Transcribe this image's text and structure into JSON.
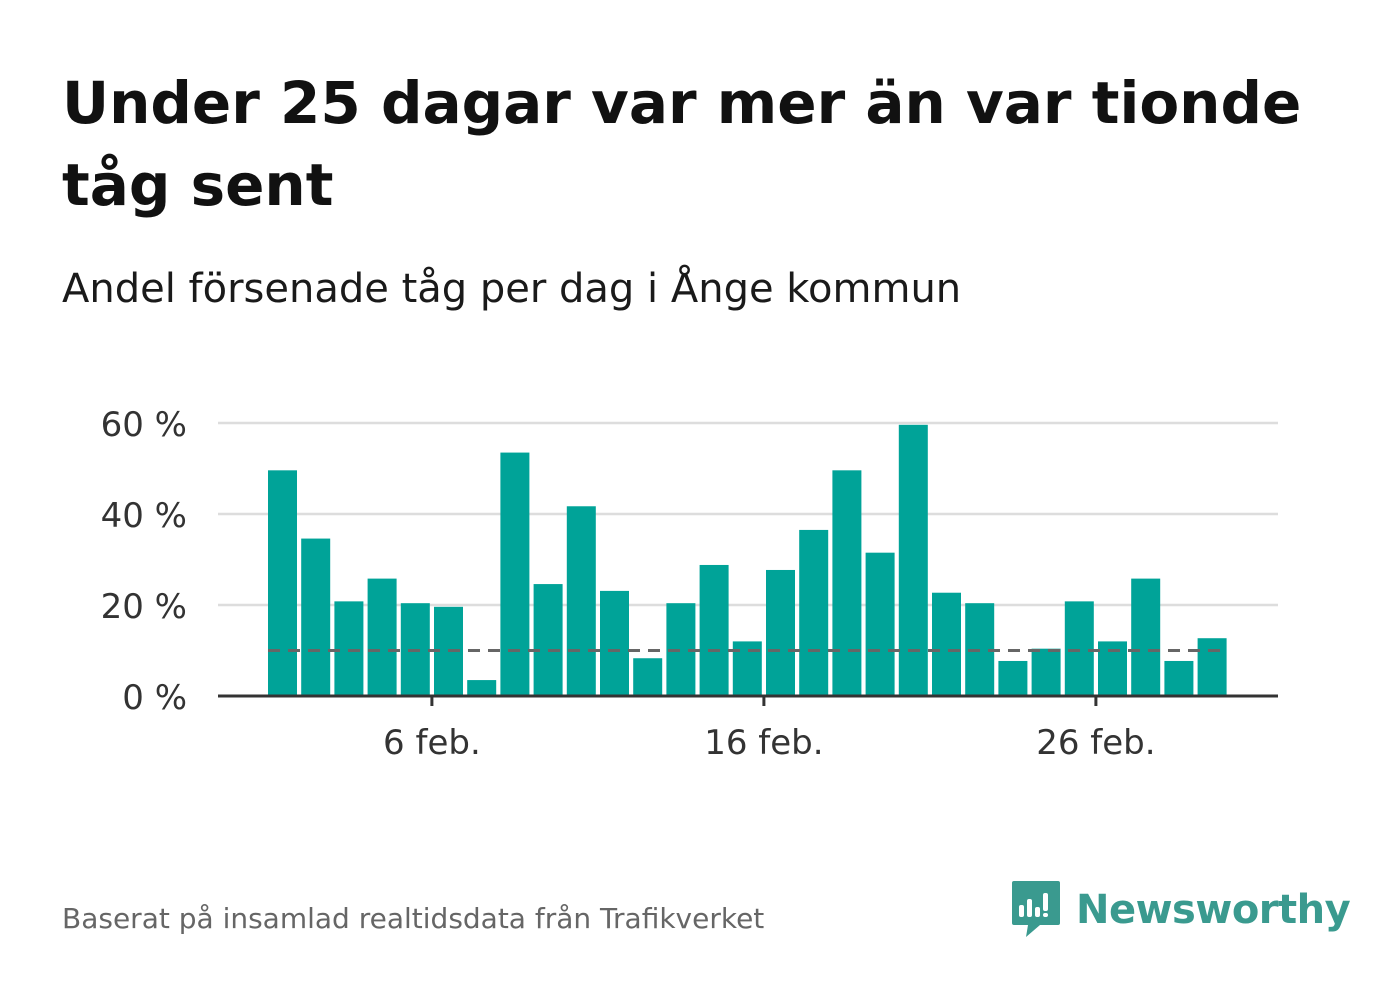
{
  "title": "Under 25 dagar var mer än var tionde tåg sent",
  "subtitle": "Andel försenade tåg per dag i Ånge kommun",
  "source": "Baserat på insamlad realtidsdata från Trafikverket",
  "brand": {
    "name": "Newsworthy",
    "icon": "newsworthy-logo-icon"
  },
  "colors": {
    "bar": "#00a398",
    "grid": "#dddddd",
    "axis": "#333333",
    "reference_line": "#666666",
    "brand": "#3a9a8f"
  },
  "chart_data": {
    "type": "bar",
    "title": "Under 25 dagar var mer än var tionde tåg sent",
    "subtitle": "Andel försenade tåg per dag i Ånge kommun",
    "xlabel": "",
    "ylabel": "",
    "ylim": [
      0,
      60
    ],
    "yticks": [
      0,
      20,
      40,
      60
    ],
    "ytick_labels": [
      "0 %",
      "20 %",
      "40 %",
      "60 %"
    ],
    "x_start_day": 1,
    "xticks": [
      6,
      16,
      26
    ],
    "xtick_labels": [
      "6 feb.",
      "16 feb.",
      "26 feb."
    ],
    "categories": [
      "1 feb.",
      "2 feb.",
      "3 feb.",
      "4 feb.",
      "5 feb.",
      "6 feb.",
      "7 feb.",
      "8 feb.",
      "9 feb.",
      "10 feb.",
      "11 feb.",
      "12 feb.",
      "13 feb.",
      "14 feb.",
      "15 feb.",
      "16 feb.",
      "17 feb.",
      "18 feb.",
      "19 feb.",
      "20 feb.",
      "21 feb.",
      "22 feb.",
      "23 feb.",
      "24 feb.",
      "25 feb.",
      "26 feb.",
      "27 feb.",
      "28 feb.",
      "29 feb."
    ],
    "values": [
      49.6,
      34.6,
      20.8,
      25.8,
      20.4,
      19.6,
      3.5,
      53.5,
      24.6,
      41.7,
      23.1,
      8.3,
      20.4,
      28.8,
      12.0,
      27.7,
      36.5,
      49.6,
      31.5,
      59.6,
      22.7,
      20.4,
      7.7,
      10.4,
      20.8,
      12.0,
      25.8,
      7.7,
      12.7
    ],
    "reference_line": {
      "value": 10,
      "style": "dashed"
    },
    "grid": true,
    "legend": "none"
  }
}
